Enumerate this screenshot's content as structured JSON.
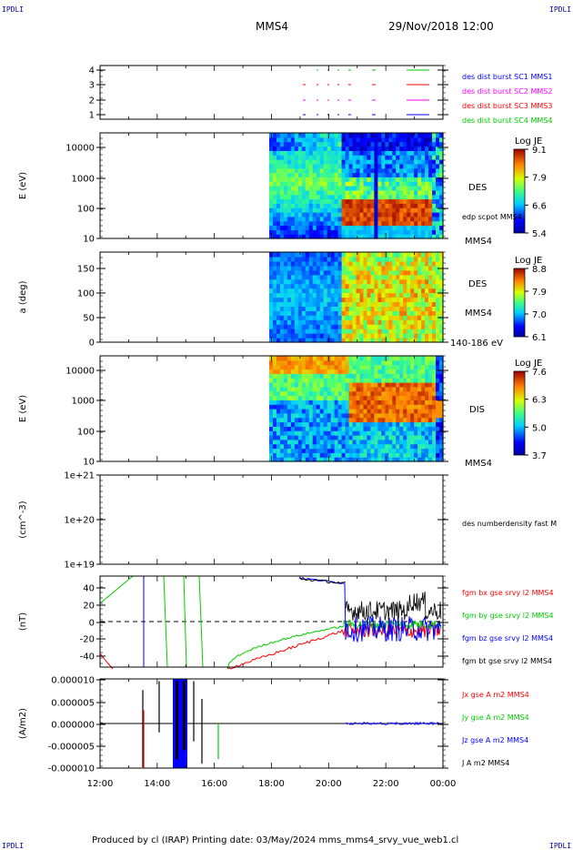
{
  "corners": {
    "tl": "IPDLI",
    "tr": "IPDLI",
    "bl": "IPDLI",
    "br": "IPDLI"
  },
  "header": {
    "spacecraft": "MMS4",
    "date": "29/Nov/2018 12:00"
  },
  "footer": {
    "text": "Produced by cl (IRAP)   Printing date: 03/May/2024   mms_mms4_srvy_vue_web1.cl"
  },
  "colors": {
    "red": "#ff0000",
    "green": "#00cc00",
    "blue": "#0000ff",
    "magenta": "#ff00ff",
    "black": "#000000"
  },
  "chart_data": [
    {
      "type": "scatter",
      "id": "burst",
      "yticks": [
        "1",
        "2",
        "3",
        "4"
      ],
      "ylim": [
        0.5,
        4.5
      ],
      "legend": [
        {
          "text": "des dist burst SC1 MMS1",
          "color": "#0000ff"
        },
        {
          "text": "des dist burst SC2 MMS2",
          "color": "#ff00ff"
        },
        {
          "text": "des dist burst SC3 MMS3",
          "color": "#ff0000"
        },
        {
          "text": "des dist burst SC4 MMS4",
          "color": "#00cc00"
        }
      ]
    },
    {
      "type": "heatmap",
      "id": "des_energy",
      "ylabel": "E (eV)",
      "yticks": [
        "10",
        "100",
        "1000",
        "10000"
      ],
      "scale": "log",
      "ylim": [
        10,
        30000
      ],
      "right_label": "DES",
      "side_text": "edp scpot MMS4",
      "bottom_label": "MMS4",
      "colorbar": {
        "title": "Log JE",
        "ticks": [
          "9.1",
          "7.9",
          "6.6",
          "5.4"
        ]
      }
    },
    {
      "type": "heatmap",
      "id": "des_pitch",
      "ylabel": "a (deg)",
      "yticks": [
        "0",
        "50",
        "100",
        "150"
      ],
      "ylim": [
        0,
        180
      ],
      "right_label": "DES",
      "bottom_label": "MMS4",
      "energy_label": "140-186 eV",
      "colorbar": {
        "title": "Log JE",
        "ticks": [
          "8.8",
          "7.9",
          "7.0",
          "6.1"
        ]
      }
    },
    {
      "type": "heatmap",
      "id": "dis_energy",
      "ylabel": "E (eV)",
      "yticks": [
        "10",
        "100",
        "1000",
        "10000"
      ],
      "scale": "log",
      "ylim": [
        10,
        30000
      ],
      "right_label": "DIS",
      "bottom_label": "MMS4",
      "colorbar": {
        "title": "Log JE",
        "ticks": [
          "7.6",
          "6.3",
          "5.0",
          "3.7"
        ]
      }
    },
    {
      "type": "line",
      "id": "density",
      "ylabel": "(cm^-3)",
      "yticks": [
        "1e+19",
        "1e+20",
        "1e+21"
      ],
      "scale": "log",
      "ylim": [
        1e+19,
        1e+21
      ],
      "legend": [
        {
          "text": "des numberdensity fast M",
          "color": "#000000"
        }
      ]
    },
    {
      "type": "line",
      "id": "bfield",
      "ylabel": "(nT)",
      "yticks": [
        "-40",
        "-20",
        "0",
        "20",
        "40"
      ],
      "ylim": [
        -50,
        50
      ],
      "legend": [
        {
          "text": "fgm bx gse srvy l2 MMS4",
          "color": "#ff0000"
        },
        {
          "text": "fgm by gse srvy l2 MMS4",
          "color": "#00cc00"
        },
        {
          "text": "fgm bz gse srvy l2 MMS4",
          "color": "#0000ff"
        },
        {
          "text": "fgm bt gse srvy l2 MMS4",
          "color": "#000000"
        }
      ]
    },
    {
      "type": "line",
      "id": "current",
      "ylabel": "(A/m2)",
      "yticks": [
        "-0.000010",
        "-0.000005",
        "0.000000",
        "0.000005",
        "0.000010"
      ],
      "ylim": [
        -1e-05,
        1e-05
      ],
      "legend": [
        {
          "text": "Jx gse A m2 MMS4",
          "color": "#ff0000"
        },
        {
          "text": "Jy gse A m2 MMS4",
          "color": "#00cc00"
        },
        {
          "text": "Jz gse A m2 MMS4",
          "color": "#0000ff"
        },
        {
          "text": "J A m2 MMS4",
          "color": "#000000"
        }
      ]
    }
  ],
  "xaxis": {
    "ticks": [
      "12:00",
      "14:00",
      "16:00",
      "18:00",
      "20:00",
      "22:00",
      "00:00"
    ]
  }
}
